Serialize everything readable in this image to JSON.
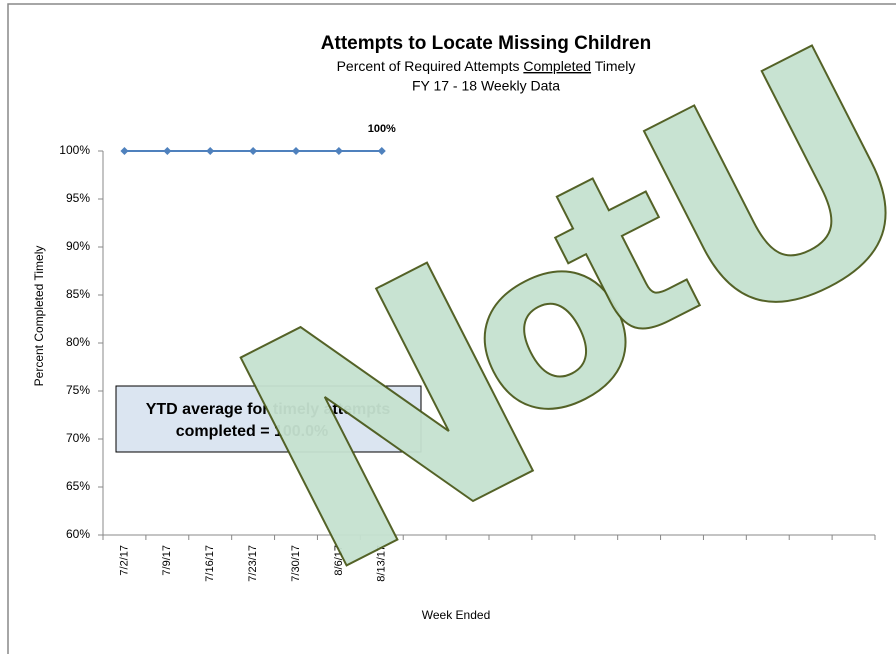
{
  "chart_data": {
    "type": "line",
    "title": "Attempts to Locate Missing Children",
    "subtitle": [
      "Percent of Required Attempts ",
      "Completed",
      " Timely"
    ],
    "subtitle2": "FY 17 - 18  Weekly Data",
    "x_label": "Week Ended",
    "y_label": "Percent Completed Timely",
    "categories": [
      "7/2/17",
      "7/9/17",
      "7/16/17",
      "7/23/17",
      "7/30/17",
      "8/6/17",
      "8/13/17",
      null,
      null,
      null,
      null,
      null,
      null,
      null,
      null,
      null,
      null,
      null
    ],
    "series": [
      {
        "name": "Percent Completed Timely",
        "color": "#4f81bd",
        "values": [
          100,
          100,
          100,
          100,
          100,
          100,
          100,
          null,
          null,
          null,
          null,
          null,
          null,
          null,
          null,
          null,
          null,
          null
        ],
        "value_labels": [
          null,
          null,
          null,
          null,
          null,
          null,
          "100%",
          null,
          null,
          null,
          null,
          null,
          null,
          null,
          null,
          null,
          null,
          null
        ]
      }
    ],
    "ylim": [
      60,
      100
    ],
    "yticks": [
      {
        "value": 60,
        "label": "60%"
      },
      {
        "value": 65,
        "label": "65%"
      },
      {
        "value": 70,
        "label": "70%"
      },
      {
        "value": 75,
        "label": "75%"
      },
      {
        "value": 80,
        "label": "80%"
      },
      {
        "value": 85,
        "label": "85%"
      },
      {
        "value": 90,
        "label": "90%"
      },
      {
        "value": 95,
        "label": "95%"
      },
      {
        "value": 100,
        "label": "100%"
      }
    ],
    "annotation": [
      "YTD average for timely attempts",
      "completed =  100.0%"
    ],
    "watermark": "Not U"
  }
}
